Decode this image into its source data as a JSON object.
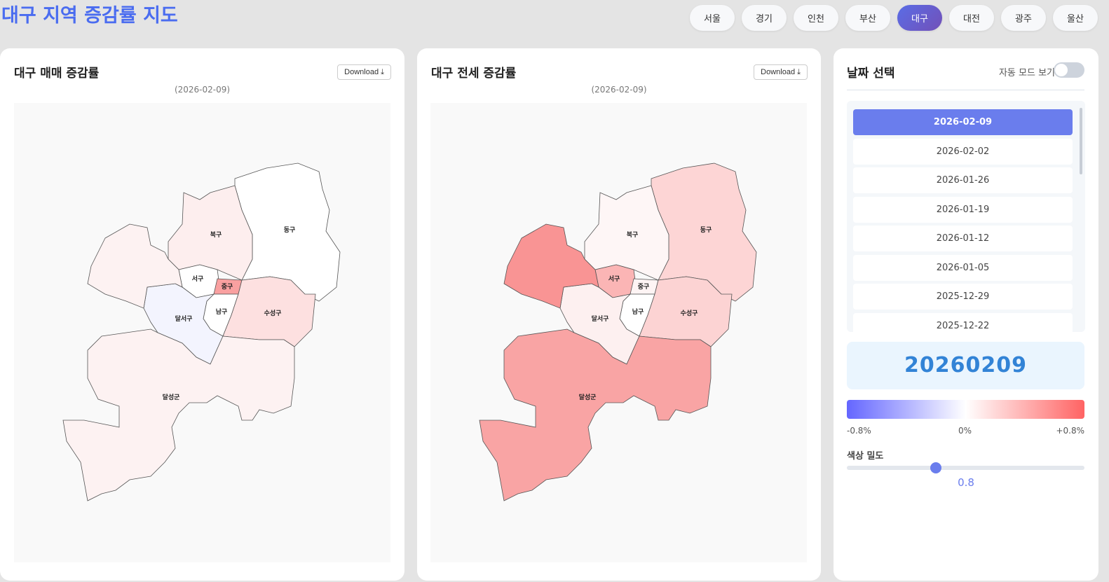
{
  "title": "대구 지역 증감률 지도",
  "tabs": [
    {
      "label": "서울"
    },
    {
      "label": "경기"
    },
    {
      "label": "인천"
    },
    {
      "label": "부산"
    },
    {
      "label": "대구",
      "active": true
    },
    {
      "label": "대전"
    },
    {
      "label": "광주"
    },
    {
      "label": "울산"
    }
  ],
  "maps": [
    {
      "title": "대구 매매 증감률",
      "download": "Download ⤓",
      "date": "(2026-02-09)",
      "regions": {
        "동구": "#ffffff",
        "북구": "#fdeeee",
        "서구": "#ffffff",
        "중구": "#f9a0a0",
        "남구": "#ffffff",
        "수성구": "#fde0e0",
        "달서구": "#f3f4fe",
        "달성군": "#fdf2f2",
        "달성군-북": "#fdf2f2"
      }
    },
    {
      "title": "대구 전세 증감률",
      "download": "Download ⤓",
      "date": "(2026-02-09)",
      "regions": {
        "동구": "#fdd5d5",
        "북구": "#fef6f6",
        "서구": "#fbb5b5",
        "중구": "#fef4f4",
        "남구": "#ffffff",
        "수성구": "#fcd3d3",
        "달서구": "#fdf0f0",
        "달성군": "#f9a4a4",
        "달성군-북": "#f99494"
      }
    }
  ],
  "labels": {
    "동구": "동구",
    "북구": "북구",
    "서구": "서구",
    "중구": "중구",
    "남구": "남구",
    "수성구": "수성구",
    "달서구": "달서구",
    "달성군": "달성군"
  },
  "side": {
    "title": "날짜 선택",
    "auto_label": "자동 모드 보기",
    "auto_on": false,
    "dates": [
      "2026-02-09",
      "2026-02-02",
      "2026-01-26",
      "2026-01-19",
      "2026-01-12",
      "2026-01-05",
      "2025-12-29",
      "2025-12-22"
    ],
    "selected": "2026-02-09",
    "big_date": "20260209",
    "legend": {
      "min": "-0.8%",
      "mid": "0%",
      "max": "+0.8%",
      "colors": [
        "#6466ff",
        "#ffffff",
        "#ff6363"
      ]
    },
    "density_label": "색상 밀도",
    "density_value": "0.8",
    "density_fraction": 0.375
  }
}
